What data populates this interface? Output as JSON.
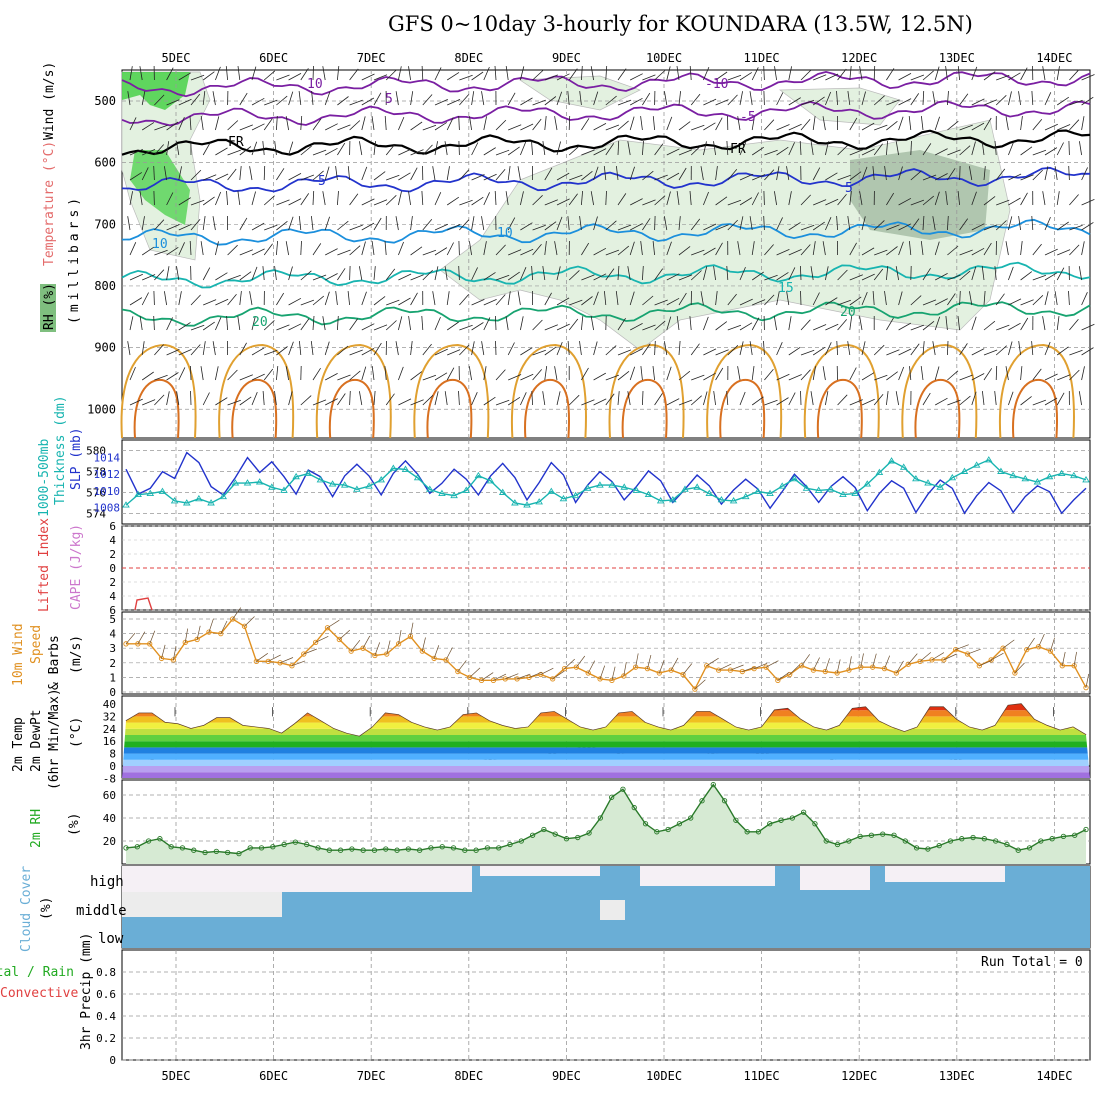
{
  "title": "GFS 0~10day 3-hourly for KOUNDARA (13.5W, 12.5N)",
  "day_labels": [
    "5DEC",
    "6DEC",
    "7DEC",
    "8DEC",
    "9DEC",
    "10DEC",
    "11DEC",
    "12DEC",
    "13DEC",
    "14DEC"
  ],
  "run_total": "Run Total = 0",
  "colors": {
    "rh_green": "#33cc33",
    "temp_purple": "#7a1fa2",
    "tick_grid": "#999999"
  },
  "chart_data": [
    {
      "type": "heatmap",
      "name_label": "Wind (m/s)",
      "labels_left": [
        "RH (%)",
        "Temperature (°C)",
        "Wind (m/s)",
        "(millibars)"
      ],
      "ylabel": "(millibars)",
      "yticks": [
        500,
        600,
        700,
        800,
        900,
        1000
      ],
      "contour_labels": [
        "10",
        "5",
        "FR",
        "5",
        "10",
        "10",
        "15",
        "20",
        "20",
        "-10",
        "-5",
        "FR",
        "5",
        "10"
      ],
      "isotherm_levels": [
        -10,
        -5,
        0,
        5,
        10,
        15,
        20
      ]
    },
    {
      "type": "line",
      "labels_left": [
        "1000-500mb",
        "Thickness (dm)",
        "SLP (mb)"
      ],
      "yticks_left": [
        574,
        576,
        578,
        580
      ],
      "yticks_right": [
        1008,
        1010,
        1012,
        1014
      ],
      "series": [
        {
          "name": "SLP (mb)",
          "values": [
            1012.6,
            1009.6,
            1010.3,
            1012.3,
            1011.5,
            1014.6,
            1013.4,
            1010.5,
            1009.5,
            1011.6,
            1014.0,
            1012.2,
            1013.5,
            1011.7,
            1009.6,
            1012.5,
            1011.7,
            1009.3,
            1011.8,
            1013.2,
            1011.8,
            1009.5,
            1012.1,
            1013.6,
            1012.0,
            1009.7,
            1010.9,
            1012.6,
            1011.4,
            1009.5,
            1011.8,
            1013.3,
            1011.6,
            1008.9,
            1011.0,
            1013.4,
            1011.9,
            1008.6,
            1010.7,
            1012.3,
            1011.1,
            1008.9,
            1010.5,
            1012.4,
            1011.2,
            1008.6,
            1010.2,
            1011.9,
            1010.6,
            1008.4,
            1010.1,
            1011.4,
            1010.2,
            1007.9,
            1009.9,
            1012.0,
            1010.5,
            1008.6,
            1010.5,
            1011.7,
            1010.4,
            1007.6,
            1009.7,
            1011.2,
            1010.3,
            1007.4,
            1009.6,
            1011.3,
            1010.3,
            1007.3,
            1009.4,
            1011.0,
            1010.0,
            1007.4,
            1009.3,
            1010.6,
            1009.9,
            1007.3,
            1008.9,
            1010.3
          ]
        },
        {
          "name": "Thickness (dm)",
          "values": [
            574.8,
            575.8,
            575.9,
            576.1,
            575.2,
            575.0,
            575.4,
            575.0,
            575.6,
            576.9,
            576.9,
            577.0,
            576.5,
            576.2,
            577.5,
            577.8,
            577.2,
            576.8,
            576.7,
            576.3,
            576.6,
            577.2,
            578.3,
            578.2,
            577.4,
            576.3,
            575.9,
            575.7,
            576.2,
            577.6,
            577.1,
            576.0,
            575.0,
            574.8,
            575.1,
            576.1,
            575.4,
            575.7,
            576.4,
            576.7,
            576.7,
            576.5,
            576.2,
            575.8,
            575.2,
            575.3,
            576.3,
            576.5,
            575.9,
            575.3,
            575.2,
            575.6,
            576.1,
            575.9,
            576.6,
            577.3,
            576.4,
            576.2,
            576.3,
            575.8,
            575.9,
            576.8,
            577.9,
            579.0,
            578.4,
            577.3,
            576.9,
            576.5,
            577.4,
            578.0,
            578.6,
            579.1,
            578.0,
            577.6,
            577.3,
            577.0,
            577.5,
            577.8,
            577.6,
            577.2
          ]
        }
      ]
    },
    {
      "type": "line",
      "labels_left": [
        "Lifted Index",
        "CAPE (J/kg)"
      ],
      "yticks": [
        6,
        4,
        2,
        0,
        -2,
        -4,
        -6
      ],
      "reference_line": 0
    },
    {
      "type": "line",
      "labels_left": [
        "10m Wind",
        "Speed",
        "& Barbs",
        "(m/s)"
      ],
      "yticks": [
        0,
        1,
        2,
        3,
        4,
        5
      ],
      "series": [
        {
          "name": "Speed",
          "values": [
            3.3,
            3.3,
            3.3,
            2.3,
            2.2,
            3.4,
            3.6,
            4.1,
            4.0,
            5.0,
            4.5,
            2.1,
            2.1,
            2.0,
            1.8,
            2.6,
            3.4,
            4.4,
            3.6,
            2.8,
            3.0,
            2.5,
            2.6,
            3.3,
            3.8,
            2.8,
            2.3,
            2.2,
            1.4,
            1.0,
            0.8,
            0.8,
            0.9,
            0.9,
            1.0,
            1.2,
            0.9,
            1.6,
            1.7,
            1.3,
            0.9,
            0.8,
            1.1,
            1.7,
            1.6,
            1.3,
            1.5,
            1.2,
            0.2,
            1.8,
            1.5,
            1.5,
            1.4,
            1.6,
            1.7,
            0.8,
            1.2,
            1.8,
            1.5,
            1.4,
            1.3,
            1.5,
            1.7,
            1.7,
            1.6,
            1.3,
            1.9,
            2.1,
            2.2,
            2.2,
            2.9,
            2.6,
            1.8,
            2.2,
            3.0,
            1.3,
            2.9,
            3.1,
            2.8,
            1.8,
            1.8,
            0.3
          ]
        }
      ]
    },
    {
      "type": "area",
      "labels_left": [
        "2m Temp",
        "2m DewPt",
        "(6hr Min/Max)",
        "(°C)"
      ],
      "yticks": [
        -8,
        0,
        8,
        16,
        24,
        32,
        40
      ],
      "series": [
        {
          "name": "2m Temp",
          "values": [
            29,
            34,
            34,
            28,
            27,
            24,
            26,
            31,
            31,
            26,
            25,
            24,
            21,
            27,
            34,
            29,
            24,
            21,
            19,
            25,
            34,
            33,
            28,
            25,
            23,
            25,
            33,
            34,
            29,
            26,
            24,
            25,
            34,
            35,
            30,
            25,
            23,
            25,
            34,
            35,
            28,
            25,
            23,
            26,
            35,
            35,
            30,
            25,
            23,
            25,
            36,
            37,
            30,
            25,
            23,
            26,
            37,
            38,
            29,
            25,
            22,
            25,
            38,
            38,
            30,
            25,
            23,
            26,
            39,
            40,
            30,
            26,
            23,
            25,
            20
          ]
        },
        {
          "name": "2m DewPt",
          "values": [
            6,
            6,
            4,
            2,
            1,
            0,
            0,
            1,
            0,
            -1,
            -2,
            -1,
            0,
            0,
            -1,
            0,
            -1,
            -1,
            0,
            0,
            -1,
            0,
            0,
            0,
            0,
            1,
            2,
            3,
            4,
            5,
            6,
            7,
            7,
            8,
            10,
            12,
            12,
            10,
            8,
            9,
            10,
            10,
            10,
            10,
            10,
            8,
            7,
            6,
            7,
            8,
            7,
            6,
            5,
            6,
            5,
            3,
            2,
            2,
            3,
            2,
            1,
            0,
            2,
            3,
            4,
            3,
            2,
            1,
            1,
            2,
            3,
            2,
            2,
            1,
            1
          ]
        }
      ]
    },
    {
      "type": "area",
      "labels_left": [
        "2m RH",
        "(%)"
      ],
      "yticks": [
        20,
        40,
        60
      ],
      "series": [
        {
          "name": "2m RH",
          "values": [
            14,
            15,
            20,
            22,
            15,
            14,
            12,
            10,
            11,
            10,
            9,
            14,
            14,
            15,
            17,
            19,
            17,
            14,
            12,
            12,
            13,
            12,
            12,
            13,
            12,
            13,
            12,
            14,
            15,
            14,
            12,
            12,
            14,
            14,
            17,
            20,
            25,
            30,
            26,
            22,
            23,
            27,
            40,
            58,
            65,
            49,
            35,
            28,
            30,
            35,
            40,
            55,
            69,
            55,
            38,
            28,
            28,
            35,
            38,
            40,
            45,
            35,
            20,
            17,
            20,
            24,
            25,
            26,
            25,
            20,
            14,
            13,
            16,
            20,
            22,
            23,
            22,
            20,
            17,
            12,
            14,
            20,
            22,
            24,
            25,
            30
          ]
        }
      ]
    },
    {
      "type": "bar",
      "labels_left": [
        "Cloud Cover",
        "(%)"
      ],
      "tick_labels": [
        "high",
        "middle",
        "low"
      ]
    },
    {
      "type": "bar",
      "labels_left": [
        "Total / Rain",
        "Convective",
        "3hr Precip (mm)"
      ],
      "yticks": [
        0,
        0.2,
        0.4,
        0.6,
        0.8
      ],
      "values": [
        0,
        0,
        0,
        0,
        0,
        0,
        0,
        0,
        0,
        0,
        0,
        0,
        0,
        0,
        0,
        0,
        0,
        0,
        0,
        0,
        0,
        0,
        0,
        0,
        0,
        0,
        0,
        0,
        0,
        0,
        0,
        0,
        0,
        0,
        0,
        0,
        0,
        0,
        0,
        0,
        0,
        0,
        0,
        0,
        0,
        0,
        0,
        0,
        0,
        0,
        0,
        0,
        0,
        0,
        0,
        0,
        0,
        0,
        0,
        0,
        0,
        0,
        0,
        0,
        0,
        0,
        0,
        0,
        0,
        0,
        0,
        0,
        0,
        0,
        0,
        0,
        0,
        0,
        0,
        0
      ]
    }
  ]
}
